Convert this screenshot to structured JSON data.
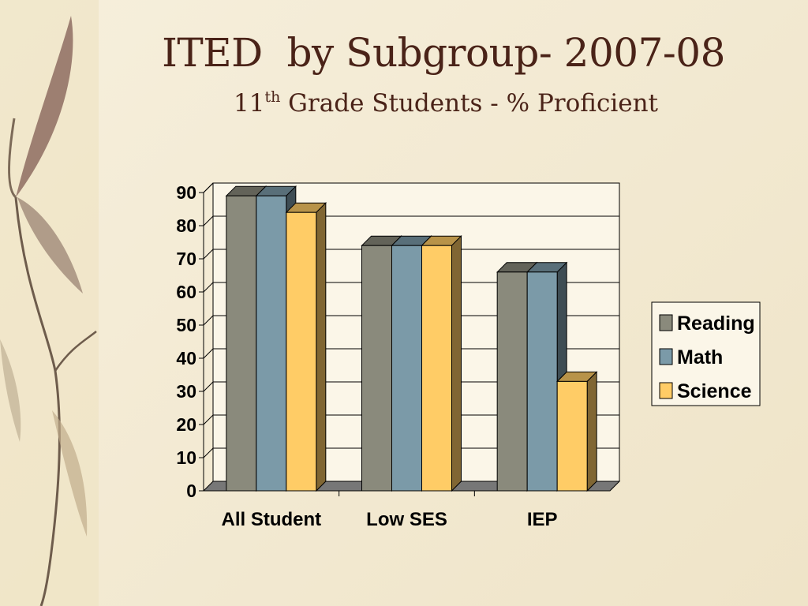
{
  "slide": {
    "title": "ITED  by Subgroup- 2007-08",
    "subtitle_pre": "11",
    "subtitle_sup": "th",
    "subtitle_post": " Grade Students - % Proficient"
  },
  "chart_data": {
    "type": "bar",
    "title": "",
    "xlabel": "",
    "ylabel": "",
    "categories": [
      "All Student",
      "Low SES",
      "IEP"
    ],
    "series": [
      {
        "name": "Reading",
        "values": [
          89,
          74,
          66
        ],
        "color": "#8a8a7c"
      },
      {
        "name": "Math",
        "values": [
          89,
          74,
          66
        ],
        "color": "#7b9aa8"
      },
      {
        "name": "Science",
        "values": [
          84,
          74,
          33
        ],
        "color": "#ffcc66"
      }
    ],
    "ylim": [
      0,
      90
    ],
    "yticks": [
      0,
      10,
      20,
      30,
      40,
      50,
      60,
      70,
      80,
      90
    ],
    "grid": true,
    "legend": "right",
    "style": "3d-clustered-column"
  }
}
